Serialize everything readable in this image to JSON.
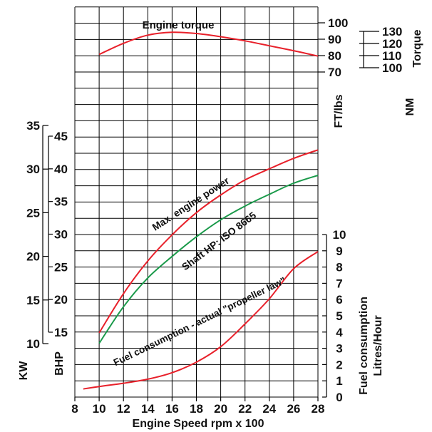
{
  "chart_data": {
    "type": "line",
    "xlabel": "Engine Speed  rpm x 100",
    "xlim": [
      8,
      28
    ],
    "x_ticks": [
      "8",
      "10",
      "12",
      "14",
      "16",
      "18",
      "20",
      "22",
      "24",
      "26",
      "28"
    ],
    "grid": true,
    "axes": {
      "kw": {
        "label": "KW",
        "range": [
          10,
          35
        ],
        "ticks": [
          "10",
          "15",
          "20",
          "25",
          "30",
          "35"
        ]
      },
      "bhp": {
        "label": "BHP",
        "range": [
          15,
          45
        ],
        "ticks": [
          "15",
          "20",
          "25",
          "30",
          "35",
          "40",
          "45"
        ]
      },
      "fuel": {
        "label_line1": "Fuel consumption",
        "label_line2": "Litres/Hour",
        "range": [
          0,
          10
        ],
        "ticks": [
          "0",
          "1",
          "2",
          "3",
          "4",
          "5",
          "6",
          "7",
          "8",
          "9",
          "10"
        ]
      },
      "torque_ftlbs": {
        "label": "FT/lbs",
        "range": [
          70,
          100
        ],
        "ticks": [
          "70",
          "80",
          "90",
          "100"
        ]
      },
      "torque_nm": {
        "label": "NM",
        "range": [
          100,
          130
        ],
        "ticks": [
          "100",
          "110",
          "120",
          "130"
        ]
      },
      "torque_title": "Torque"
    },
    "series": [
      {
        "name": "Engine torque",
        "axis": "torque_ftlbs",
        "color": "#e8202a",
        "x": [
          10,
          12,
          14,
          16,
          18,
          20,
          22,
          24,
          26,
          28
        ],
        "y": [
          80.7,
          87.5,
          92.5,
          94.2,
          93.5,
          91.5,
          89,
          86,
          83,
          79.7
        ]
      },
      {
        "name": "Max. engine power",
        "axis": "bhp",
        "color": "#e8202a",
        "x": [
          10,
          12,
          14,
          16,
          18,
          20,
          22,
          24,
          26,
          28
        ],
        "y": [
          14.9,
          20.9,
          25.9,
          29.9,
          33.3,
          36.0,
          38.3,
          40.0,
          41.6,
          42.9
        ]
      },
      {
        "name": "Shaft HP: ISO 8665",
        "axis": "bhp",
        "color": "#1a9a4a",
        "x": [
          10,
          12,
          14,
          16,
          18,
          20,
          22,
          24,
          26,
          28
        ],
        "y": [
          13.3,
          18.9,
          23.3,
          26.6,
          29.6,
          32.2,
          34.3,
          36.1,
          37.8,
          39.0
        ]
      },
      {
        "name": "Fuel consumption - actual \"propeller law\"",
        "axis": "fuel",
        "color": "#e8202a",
        "x": [
          8.7,
          10,
          12,
          14,
          16,
          18,
          20,
          22,
          24,
          26,
          28
        ],
        "y": [
          0.5,
          0.65,
          0.85,
          1.1,
          1.5,
          2.15,
          3.1,
          4.5,
          6.05,
          7.9,
          8.95
        ]
      }
    ]
  }
}
